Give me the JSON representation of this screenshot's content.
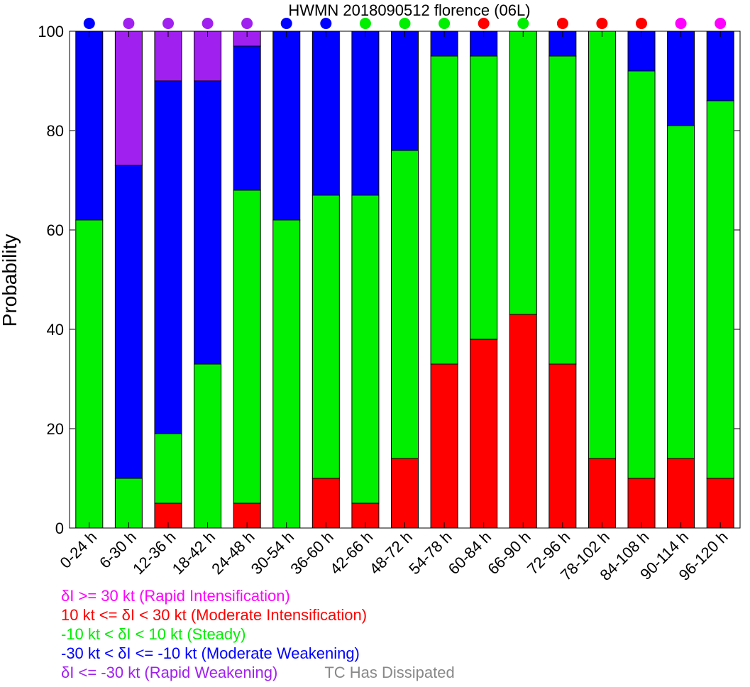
{
  "chart_data": {
    "type": "bar",
    "stacked": true,
    "title": "HWMN 2018090512 florence (06L)",
    "xlabel": "",
    "ylabel": "Probability",
    "ylim": [
      0,
      100
    ],
    "yticks": [
      0,
      20,
      40,
      60,
      80,
      100
    ],
    "categories": [
      "0-24 h",
      "6-30 h",
      "12-36 h",
      "18-42 h",
      "24-48 h",
      "30-54 h",
      "36-60 h",
      "42-66 h",
      "48-72 h",
      "54-78 h",
      "60-84 h",
      "66-90 h",
      "72-96 h",
      "78-102 h",
      "84-108 h",
      "90-114 h",
      "96-120 h"
    ],
    "series": [
      {
        "key": "ri",
        "color": "#ff00ff",
        "values": [
          0,
          0,
          0,
          0,
          0,
          0,
          0,
          0,
          0,
          0,
          0,
          0,
          0,
          0,
          0,
          0,
          0
        ]
      },
      {
        "key": "mi",
        "color": "#ff0000",
        "values": [
          0,
          0,
          5,
          0,
          5,
          0,
          10,
          5,
          14,
          33,
          38,
          43,
          33,
          14,
          10,
          14,
          10
        ]
      },
      {
        "key": "st",
        "color": "#00ee00",
        "values": [
          62,
          10,
          14,
          33,
          63,
          62,
          57,
          62,
          62,
          62,
          57,
          57,
          62,
          86,
          82,
          67,
          76
        ]
      },
      {
        "key": "mw",
        "color": "#0000ff",
        "values": [
          38,
          63,
          71,
          57,
          29,
          38,
          33,
          33,
          24,
          5,
          5,
          0,
          5,
          0,
          8,
          19,
          14
        ]
      },
      {
        "key": "rw",
        "color": "#a020f0",
        "values": [
          0,
          27,
          10,
          10,
          3,
          0,
          0,
          0,
          0,
          0,
          0,
          0,
          0,
          0,
          0,
          0,
          0
        ]
      }
    ],
    "top_markers": [
      "mw",
      "rw",
      "rw",
      "rw",
      "rw",
      "mw",
      "mw",
      "st",
      "st",
      "st",
      "mi",
      "st",
      "mi",
      "mi",
      "mi",
      "ri",
      "ri"
    ],
    "grid": false,
    "legend_position": "bottom-left"
  },
  "legend": {
    "items": [
      {
        "text": "δI >= 30 kt (Rapid Intensification)",
        "color": "#ff00ff"
      },
      {
        "text": "10 kt <= δI < 30 kt (Moderate Intensification)",
        "color": "#ff0000"
      },
      {
        "text": "-10 kt < δI < 10 kt (Steady)",
        "color": "#00ee00"
      },
      {
        "text": "-30 kt < δI <= -10 kt (Moderate Weakening)",
        "color": "#0000ff"
      },
      {
        "text": "δI <= -30 kt (Rapid Weakening)",
        "color": "#a020f0"
      }
    ],
    "dissipated": {
      "text": "TC Has Dissipated",
      "color": "#888888"
    }
  }
}
